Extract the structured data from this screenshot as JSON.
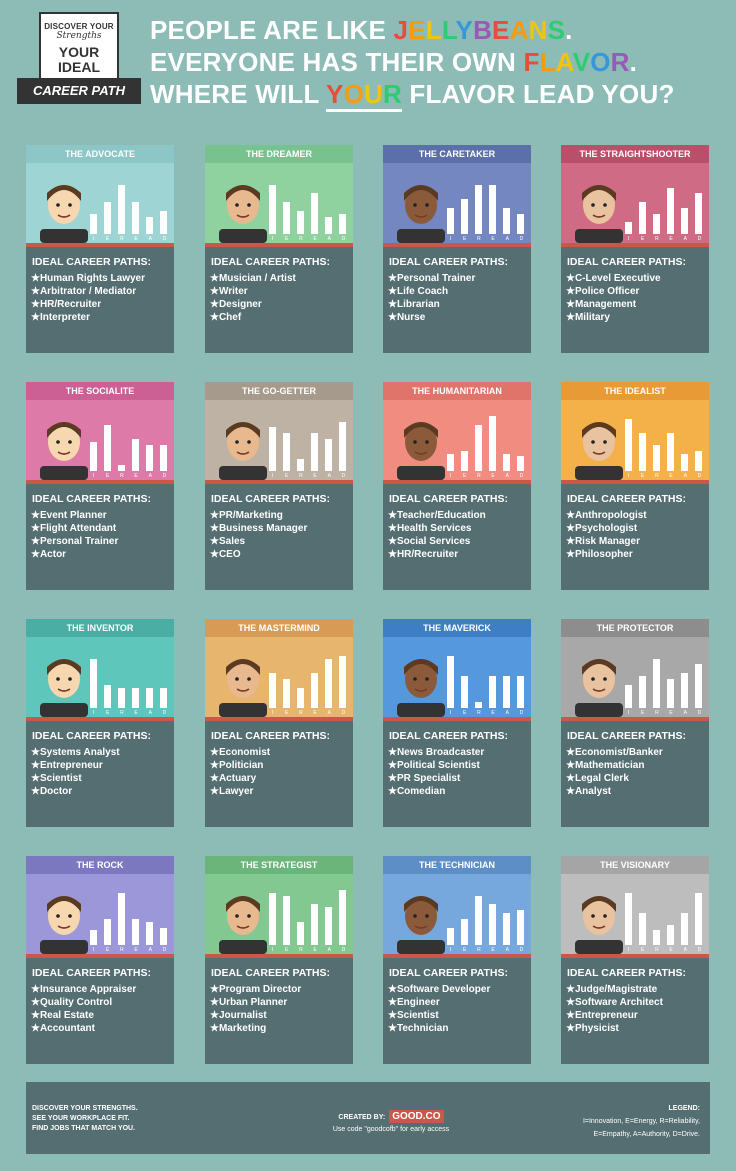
{
  "colors": {
    "background": "#8dbbb6",
    "panel": "#546e72",
    "accent": "#c9584a"
  },
  "logo": {
    "line1": "DISCOVER YOUR",
    "line2": "Strengths",
    "line3": "YOUR IDEAL",
    "ribbon": "CAREER PATH"
  },
  "headline": {
    "line1_pre": "PEOPLE ARE LIKE ",
    "line1_word": "JELLYBEANS",
    "line1_post": ".",
    "line2_pre": "EVERYONE HAS THEIR OWN ",
    "line2_word": "FLAVOR",
    "line2_post": ".",
    "line3_pre": "WHERE WILL ",
    "line3_word": "YOUR",
    "line3_post": " FLAVOR LEAD YOU?"
  },
  "ieread_letters": [
    "I",
    "E",
    "R",
    "E",
    "A",
    "D"
  ],
  "careers_title": "IDEAL CAREER PATHS:",
  "cards": [
    {
      "name": "THE ADVOCATE",
      "header_color": "#8cc6c6",
      "art_color": "#9ed5d4",
      "bars": [
        0.35,
        0.55,
        0.85,
        0.55,
        0.3,
        0.4
      ],
      "paths": [
        "★Human Rights Lawyer",
        "★Arbitrator / Mediator",
        "★HR/Recruiter",
        "★Interpreter"
      ]
    },
    {
      "name": "THE DREAMER",
      "header_color": "#77c28f",
      "art_color": "#8fd2a0",
      "bars": [
        0.85,
        0.55,
        0.4,
        0.7,
        0.3,
        0.35
      ],
      "paths": [
        "★Musician / Artist",
        "★Writer",
        "★Designer",
        "★Chef"
      ]
    },
    {
      "name": "THE CARETAKER",
      "header_color": "#5b6fa8",
      "art_color": "#7587c0",
      "bars": [
        0.45,
        0.6,
        0.85,
        0.85,
        0.45,
        0.35
      ],
      "paths": [
        "★Personal Trainer",
        "★Life Coach",
        "★Librarian",
        "★Nurse"
      ]
    },
    {
      "name": "THE STRAIGHTSHOOTER",
      "header_color": "#b9506a",
      "art_color": "#cf6b85",
      "bars": [
        0.2,
        0.55,
        0.35,
        0.8,
        0.45,
        0.7
      ],
      "paths": [
        "★C-Level Executive",
        "★Police Officer",
        "★Management",
        "★Military"
      ]
    },
    {
      "name": "THE SOCIALITE",
      "header_color": "#cc5f93",
      "art_color": "#dd7aa8",
      "bars": [
        0.5,
        0.8,
        0.1,
        0.55,
        0.45,
        0.45
      ],
      "paths": [
        "★Event Planner",
        "★Flight Attendant",
        "★Personal Trainer",
        "★Actor"
      ]
    },
    {
      "name": "THE GO-GETTER",
      "header_color": "#a59a8b",
      "art_color": "#bdb2a3",
      "bars": [
        0.75,
        0.65,
        0.2,
        0.65,
        0.55,
        0.85
      ],
      "paths": [
        "★PR/Marketing",
        "★Business Manager",
        "★Sales",
        "★CEO"
      ]
    },
    {
      "name": "THE HUMANITARIAN",
      "header_color": "#e0736a",
      "art_color": "#f08c80",
      "bars": [
        0.3,
        0.35,
        0.8,
        0.95,
        0.3,
        0.25
      ],
      "paths": [
        "★Teacher/Education",
        "★Health Services",
        "★Social Services",
        "★HR/Recruiter"
      ]
    },
    {
      "name": "THE IDEALIST",
      "header_color": "#e79a35",
      "art_color": "#f5b149",
      "bars": [
        0.9,
        0.65,
        0.45,
        0.65,
        0.3,
        0.35
      ],
      "paths": [
        "★Anthropologist",
        "★Psychologist",
        "★Risk Manager",
        "★Philosopher"
      ]
    },
    {
      "name": "THE INVENTOR",
      "header_color": "#4aaea4",
      "art_color": "#5fc6bb",
      "bars": [
        0.85,
        0.4,
        0.35,
        0.35,
        0.35,
        0.35
      ],
      "paths": [
        "★Systems Analyst",
        "★Entrepreneur",
        "★Scientist",
        "★Doctor"
      ]
    },
    {
      "name": "THE MASTERMIND",
      "header_color": "#d79b55",
      "art_color": "#e8b56e",
      "bars": [
        0.6,
        0.5,
        0.35,
        0.6,
        0.85,
        0.9
      ],
      "paths": [
        "★Economist",
        "★Politician",
        "★Actuary",
        "★Lawyer"
      ]
    },
    {
      "name": "THE MAVERICK",
      "header_color": "#3e7ec5",
      "art_color": "#5598dd",
      "bars": [
        0.9,
        0.55,
        0.1,
        0.55,
        0.55,
        0.55
      ],
      "paths": [
        "★News Broadcaster",
        "★Political Scientist",
        "★PR Specialist",
        "★Comedian"
      ]
    },
    {
      "name": "THE PROTECTOR",
      "header_color": "#8d8d8d",
      "art_color": "#a8a8a8",
      "bars": [
        0.4,
        0.55,
        0.85,
        0.5,
        0.6,
        0.75
      ],
      "paths": [
        "★Economist/Banker",
        "★Mathematician",
        "★Legal Clerk",
        "★Analyst"
      ]
    },
    {
      "name": "THE ROCK",
      "header_color": "#7c78c0",
      "art_color": "#9b97d8",
      "bars": [
        0.25,
        0.45,
        0.9,
        0.45,
        0.4,
        0.3
      ],
      "paths": [
        "★Insurance Appraiser",
        "★Quality Control",
        "★Real Estate",
        "★Accountant"
      ]
    },
    {
      "name": "THE STRATEGIST",
      "header_color": "#6bb47a",
      "art_color": "#82c890",
      "bars": [
        0.9,
        0.85,
        0.4,
        0.7,
        0.65,
        0.95
      ],
      "paths": [
        "★Program Director",
        "★Urban Planner",
        "★Journalist",
        "★Marketing"
      ]
    },
    {
      "name": "THE TECHNICIAN",
      "header_color": "#5d8fc6",
      "art_color": "#76a8dd",
      "bars": [
        0.3,
        0.45,
        0.85,
        0.7,
        0.55,
        0.6
      ],
      "paths": [
        "★Software Developer",
        "★Engineer",
        "★Scientist",
        "★Technician"
      ]
    },
    {
      "name": "THE VISIONARY",
      "header_color": "#a5a5a5",
      "art_color": "#bdbdbd",
      "bars": [
        0.9,
        0.55,
        0.25,
        0.35,
        0.55,
        0.9
      ],
      "paths": [
        "★Judge/Magistrate",
        "★Software Architect",
        "★Entrepreneur",
        "★Physicist"
      ]
    }
  ],
  "footer": {
    "left_lines": [
      "DISCOVER YOUR STRENGTHS.",
      "SEE YOUR WORKPLACE FIT.",
      "FIND JOBS THAT MATCH YOU."
    ],
    "created_by": "CREATED BY:",
    "brand": "GOOD.CO",
    "code_text": "Use code \"goodcofb\" for early access",
    "legend_title": "LEGEND:",
    "legend_line1": "I=Innovation, E=Energy, R=Reliability,",
    "legend_line2": "E=Empathy, A=Authority, D=Drive."
  }
}
